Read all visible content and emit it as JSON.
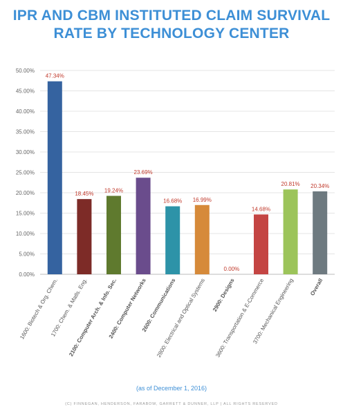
{
  "title_line1": "IPR AND CBM INSTITUTED CLAIM SURVIVAL",
  "title_line2": "RATE BY TECHNOLOGY CENTER",
  "note": "(as of December 1, 2016)",
  "footer": "(C) FINNEGAN, HENDERSON, FARABOW, GARRETT & DUNNER, LLP | ALL RIGHTS RESERVED",
  "colors": {
    "title": "#3d8fd6",
    "value_label": "#c0392b",
    "axis_text": "#666666",
    "grid": "#e4e4e4"
  },
  "chart_data": {
    "type": "bar",
    "categories": [
      "1600: Biotech & Org. Chem.",
      "1700: Chem. & Matls. Eng.",
      "2100: Computer Arch. & Info. Sec.",
      "2400: Computer Networks",
      "2600: Communications",
      "2800: Electrical and Optical Systems",
      "2900: Designs",
      "3600: Transportation & E-Commerce",
      "3700: Mechanical Engineering",
      "Overall"
    ],
    "values": [
      47.34,
      18.45,
      19.24,
      23.69,
      16.68,
      16.99,
      0.0,
      14.68,
      20.81,
      20.34
    ],
    "value_labels": [
      "47.34%",
      "18.45%",
      "19.24%",
      "23.69%",
      "16.68%",
      "16.99%",
      "0.00%",
      "14.68%",
      "20.81%",
      "20.34%"
    ],
    "bar_colors": [
      "#3563a0",
      "#7d2b27",
      "#5f7a2e",
      "#6a4c8c",
      "#2d93a8",
      "#d68a3a",
      "#3563a0",
      "#c44543",
      "#9cc45a",
      "#6e7a80"
    ],
    "bold_categories": [
      false,
      false,
      true,
      true,
      true,
      false,
      true,
      false,
      false,
      true
    ],
    "ylim": [
      0,
      50
    ],
    "yticks": [
      "0.00%",
      "5.00%",
      "10.00%",
      "15.00%",
      "20.00%",
      "25.00%",
      "30.00%",
      "35.00%",
      "40.00%",
      "45.00%",
      "50.00%"
    ],
    "ytick_values": [
      0,
      5,
      10,
      15,
      20,
      25,
      30,
      35,
      40,
      45,
      50
    ],
    "grid": true,
    "xlabel": "",
    "ylabel": ""
  }
}
